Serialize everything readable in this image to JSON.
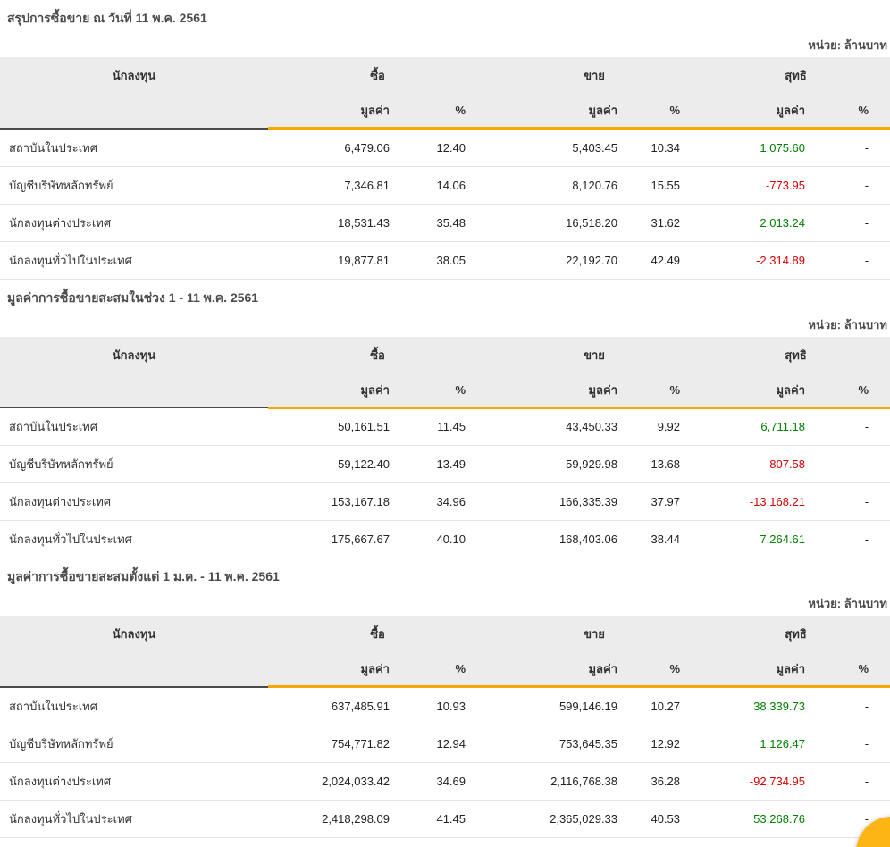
{
  "unit_label": "หน่วย: ล้านบาท",
  "columns": {
    "investor": "นักลงทุน",
    "buy": "ซื้อ",
    "sell": "ขาย",
    "net": "สุทธิ",
    "value": "มูลค่า",
    "percent": "%"
  },
  "colors": {
    "positive_green": "#008000",
    "negative_red": "#d80000",
    "accent_orange": "#f7a800",
    "header_background": "#ececec",
    "fab_yellow": "#fdb515"
  },
  "sections": [
    {
      "title": "สรุปการซื้อขาย ณ วันที่ 11 พ.ค. 2561",
      "rows": [
        {
          "investor": "สถาบันในประเทศ",
          "buy_value": "6,479.06",
          "buy_pct": "12.40",
          "sell_value": "5,403.45",
          "sell_pct": "10.34",
          "net_value": "1,075.60",
          "net_sign": "positive",
          "net_pct": "-"
        },
        {
          "investor": "บัญชีบริษัทหลักทรัพย์",
          "buy_value": "7,346.81",
          "buy_pct": "14.06",
          "sell_value": "8,120.76",
          "sell_pct": "15.55",
          "net_value": "-773.95",
          "net_sign": "negative",
          "net_pct": "-"
        },
        {
          "investor": "นักลงทุนต่างประเทศ",
          "buy_value": "18,531.43",
          "buy_pct": "35.48",
          "sell_value": "16,518.20",
          "sell_pct": "31.62",
          "net_value": "2,013.24",
          "net_sign": "positive",
          "net_pct": "-"
        },
        {
          "investor": "นักลงทุนทั่วไปในประเทศ",
          "buy_value": "19,877.81",
          "buy_pct": "38.05",
          "sell_value": "22,192.70",
          "sell_pct": "42.49",
          "net_value": "-2,314.89",
          "net_sign": "negative",
          "net_pct": "-"
        }
      ]
    },
    {
      "title": "มูลค่าการซื้อขายสะสมในช่วง 1 - 11 พ.ค. 2561",
      "rows": [
        {
          "investor": "สถาบันในประเทศ",
          "buy_value": "50,161.51",
          "buy_pct": "11.45",
          "sell_value": "43,450.33",
          "sell_pct": "9.92",
          "net_value": "6,711.18",
          "net_sign": "positive",
          "net_pct": "-"
        },
        {
          "investor": "บัญชีบริษัทหลักทรัพย์",
          "buy_value": "59,122.40",
          "buy_pct": "13.49",
          "sell_value": "59,929.98",
          "sell_pct": "13.68",
          "net_value": "-807.58",
          "net_sign": "negative",
          "net_pct": "-"
        },
        {
          "investor": "นักลงทุนต่างประเทศ",
          "buy_value": "153,167.18",
          "buy_pct": "34.96",
          "sell_value": "166,335.39",
          "sell_pct": "37.97",
          "net_value": "-13,168.21",
          "net_sign": "negative",
          "net_pct": "-"
        },
        {
          "investor": "นักลงทุนทั่วไปในประเทศ",
          "buy_value": "175,667.67",
          "buy_pct": "40.10",
          "sell_value": "168,403.06",
          "sell_pct": "38.44",
          "net_value": "7,264.61",
          "net_sign": "positive",
          "net_pct": "-"
        }
      ]
    },
    {
      "title": "มูลค่าการซื้อขายสะสมตั้งแต่ 1 ม.ค. - 11 พ.ค. 2561",
      "rows": [
        {
          "investor": "สถาบันในประเทศ",
          "buy_value": "637,485.91",
          "buy_pct": "10.93",
          "sell_value": "599,146.19",
          "sell_pct": "10.27",
          "net_value": "38,339.73",
          "net_sign": "positive",
          "net_pct": "-"
        },
        {
          "investor": "บัญชีบริษัทหลักทรัพย์",
          "buy_value": "754,771.82",
          "buy_pct": "12.94",
          "sell_value": "753,645.35",
          "sell_pct": "12.92",
          "net_value": "1,126.47",
          "net_sign": "positive",
          "net_pct": "-"
        },
        {
          "investor": "นักลงทุนต่างประเทศ",
          "buy_value": "2,024,033.42",
          "buy_pct": "34.69",
          "sell_value": "2,116,768.38",
          "sell_pct": "36.28",
          "net_value": "-92,734.95",
          "net_sign": "negative",
          "net_pct": "-"
        },
        {
          "investor": "นักลงทุนทั่วไปในประเทศ",
          "buy_value": "2,418,298.09",
          "buy_pct": "41.45",
          "sell_value": "2,365,029.33",
          "sell_pct": "40.53",
          "net_value": "53,268.76",
          "net_sign": "positive",
          "net_pct": "-"
        }
      ]
    }
  ]
}
